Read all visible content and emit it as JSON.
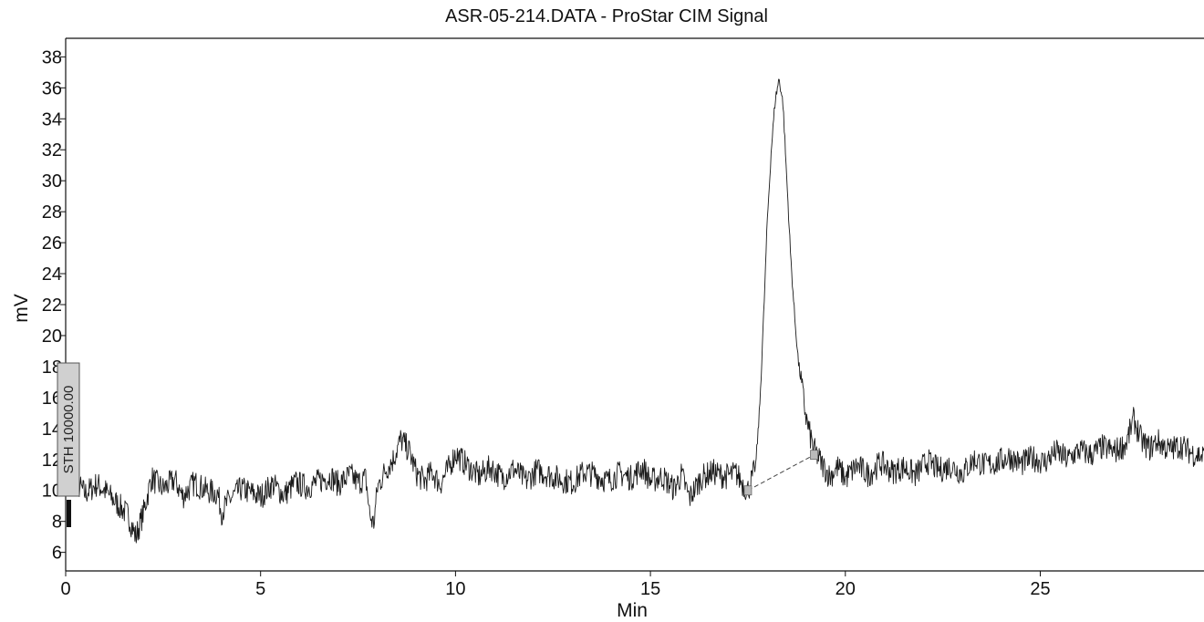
{
  "chart_data": {
    "type": "line",
    "title": "ASR-05-214.DATA - ProStar CIM Signal",
    "xlabel": "Min",
    "ylabel": "mV",
    "xlim": [
      0,
      29.2
    ],
    "ylim": [
      4.8,
      39.2
    ],
    "x_ticks": [
      0,
      5,
      10,
      15,
      20,
      25
    ],
    "y_ticks": [
      6,
      8,
      10,
      12,
      14,
      16,
      18,
      20,
      22,
      24,
      26,
      28,
      30,
      32,
      34,
      36,
      38
    ],
    "y_tick_labels": [
      "6",
      "8",
      "10",
      "12",
      "14",
      "16",
      "18",
      "20",
      "22",
      "24",
      "26",
      "28",
      "30",
      "32",
      "34",
      "36",
      "38"
    ],
    "grid": false,
    "series": [
      {
        "color": "#1a1a1a",
        "x": [
          0,
          0.2,
          0.5,
          0.8,
          1.0,
          1.3,
          1.6,
          1.8,
          2.0,
          2.2,
          2.5,
          2.8,
          3.0,
          3.3,
          3.6,
          3.9,
          4.0,
          4.2,
          4.5,
          4.8,
          5.0,
          5.3,
          5.6,
          5.9,
          6.2,
          6.5,
          6.8,
          7.0,
          7.3,
          7.5,
          7.7,
          7.8,
          7.9,
          8.0,
          8.2,
          8.4,
          8.6,
          8.8,
          9.0,
          9.2,
          9.4,
          9.6,
          9.8,
          10.0,
          10.3,
          10.6,
          10.9,
          11.2,
          11.5,
          11.8,
          12.1,
          12.4,
          12.7,
          13.0,
          13.3,
          13.6,
          13.9,
          14.2,
          14.5,
          14.8,
          15.0,
          15.3,
          15.6,
          15.8,
          16.0,
          16.3,
          16.6,
          16.9,
          17.2,
          17.4,
          17.5,
          17.6,
          17.7,
          17.8,
          17.9,
          18.0,
          18.1,
          18.2,
          18.3,
          18.4,
          18.5,
          18.6,
          18.7,
          18.8,
          18.9,
          19.0,
          19.1,
          19.2,
          19.4,
          19.6,
          19.8,
          20.0,
          20.3,
          20.6,
          20.9,
          21.2,
          21.5,
          21.8,
          22.1,
          22.4,
          22.7,
          23.0,
          23.3,
          23.6,
          23.9,
          24.2,
          24.5,
          24.8,
          25.1,
          25.4,
          25.7,
          26.0,
          26.3,
          26.6,
          26.9,
          27.2,
          27.4,
          27.6,
          27.8,
          28.0,
          28.3,
          28.6,
          28.9,
          29.2
        ],
        "y": [
          10.3,
          10.7,
          9.8,
          10.4,
          10.0,
          9.2,
          8.4,
          7.0,
          8.6,
          10.8,
          10.1,
          10.7,
          9.6,
          10.5,
          10.0,
          9.8,
          8.6,
          9.4,
          10.1,
          9.8,
          9.6,
          10.4,
          9.7,
          10.5,
          10.2,
          10.6,
          10.9,
          10.4,
          11.0,
          10.5,
          10.8,
          8.4,
          7.8,
          10.2,
          11.3,
          12.0,
          13.3,
          12.6,
          11.1,
          10.6,
          11.2,
          10.4,
          11.3,
          12.4,
          11.6,
          10.9,
          11.5,
          10.8,
          11.4,
          10.6,
          11.3,
          11.0,
          10.7,
          10.5,
          11.2,
          11.0,
          10.6,
          11.1,
          10.8,
          11.5,
          10.6,
          10.9,
          10.1,
          11.0,
          9.5,
          10.8,
          11.2,
          10.9,
          11.1,
          10.3,
          10.0,
          10.7,
          11.6,
          15.2,
          21.0,
          27.5,
          32.0,
          35.2,
          36.6,
          35.0,
          30.0,
          25.0,
          21.2,
          18.2,
          16.4,
          14.6,
          13.5,
          12.6,
          11.7,
          10.9,
          11.5,
          10.8,
          11.6,
          11.0,
          11.8,
          11.2,
          11.5,
          11.0,
          11.9,
          11.3,
          11.6,
          11.1,
          12.0,
          11.6,
          11.8,
          12.2,
          11.7,
          12.1,
          11.8,
          12.5,
          12.0,
          12.6,
          12.3,
          12.8,
          12.5,
          13.0,
          14.6,
          13.2,
          12.7,
          13.2,
          12.6,
          12.9,
          12.4,
          12.2
        ]
      }
    ],
    "baseline_x": [
      17.5,
      19.2
    ],
    "baseline_y": [
      10.0,
      12.3
    ],
    "stamp": {
      "text": "STH 10000.00"
    }
  }
}
